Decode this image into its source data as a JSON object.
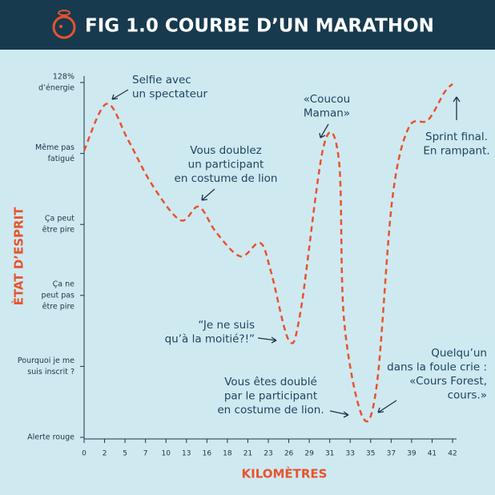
{
  "chart_data": {
    "type": "line",
    "title": "FIG 1.0 COURBE D’UN MARATHON",
    "x_label": "KILOMÈTRES",
    "y_label": "ÈTAT D’ESPRIT",
    "categories": [
      "0",
      "2",
      "5",
      "7",
      "10",
      "13",
      "16",
      "18",
      "21",
      "23",
      "26",
      "29",
      "31",
      "33",
      "35",
      "37",
      "39",
      "41",
      "42"
    ],
    "y_levels": [
      [
        "Alerte rouge"
      ],
      [
        "Pourquoi je me",
        "suis inscrit ?"
      ],
      [
        "Ça ne",
        "peut pas",
        "être pire"
      ],
      [
        "Ça peut",
        "être pire"
      ],
      [
        "Même pas",
        "fatigué"
      ],
      [
        "128%",
        "d’énergie"
      ]
    ],
    "x": [
      0,
      2.3,
      5.3,
      7.9,
      12.1,
      14.8,
      16.9,
      19.9,
      22.2,
      23.4,
      26,
      27.7,
      30.4,
      31.9,
      32.4,
      34.2,
      35.6,
      37.1,
      38.7,
      40.6,
      41.6,
      42
    ],
    "values": [
      4.04,
      4.7,
      4.19,
      3.57,
      3.06,
      3.25,
      2.89,
      2.55,
      2.74,
      2.33,
      1.37,
      1.76,
      4.1,
      3.9,
      1.65,
      0.29,
      0.74,
      3.34,
      4.36,
      4.47,
      4.86,
      4.98
    ],
    "color": "#e8532b",
    "annotations": [
      [
        "Selfie avec",
        "un spectateur"
      ],
      [
        "Vous doublez",
        "un participant",
        "en costume de lion"
      ],
      [
        "«Coucou",
        "Maman»"
      ],
      [
        "Sprint final.",
        "En rampant."
      ],
      [
        "“Je ne suis",
        "qu’à la moitié?!”"
      ],
      [
        "Vous êtes doublé",
        "par le participant",
        "en costume de lion."
      ],
      [
        "Quelqu’un",
        "dans la foule crie :",
        "«Cours Forest,",
        "cours.»"
      ]
    ]
  }
}
